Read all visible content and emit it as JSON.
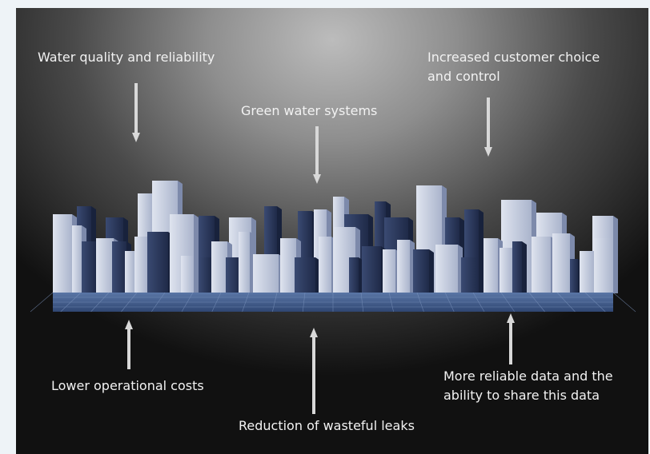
{
  "labels": {
    "top_left": "Water quality and reliability",
    "top_center": "Green water systems",
    "top_right_line1": "Increased customer choice",
    "top_right_line2": "and control",
    "bottom_left": "Lower operational costs",
    "bottom_center": "Reduction of wasteful leaks",
    "bottom_right_line1": "More reliable data and the",
    "bottom_right_line2": "ability to share this data"
  },
  "colors": {
    "building_light": "#c4cde0",
    "building_mid": "#8a99ba",
    "building_dark": "#2e3d64",
    "floor": "#4e6a98",
    "text": "#f2f2f2",
    "arrow": "#d8d8d8"
  }
}
